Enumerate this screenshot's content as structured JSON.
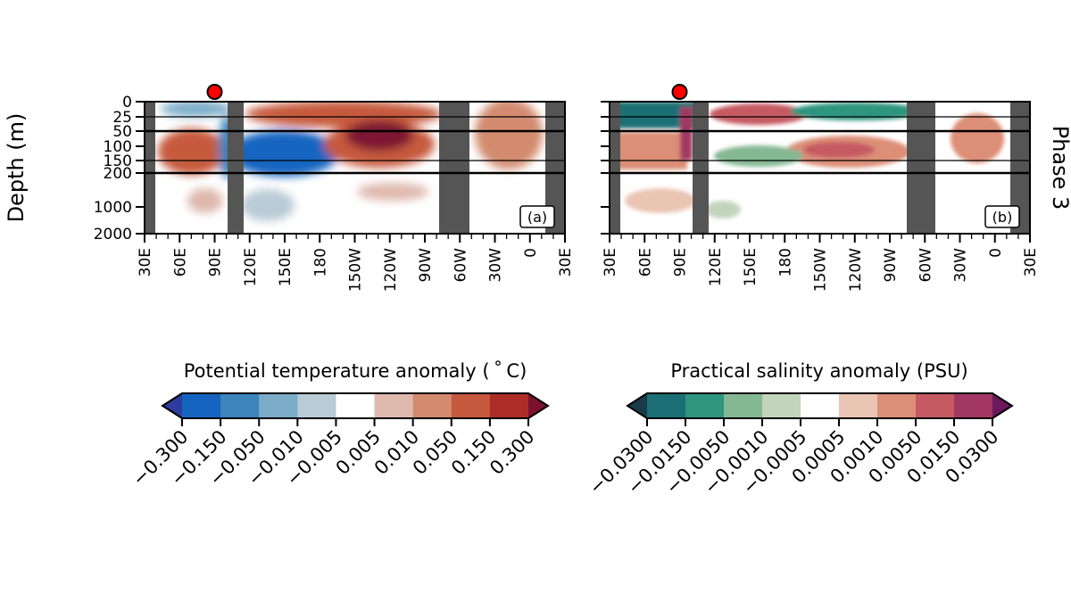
{
  "figure": {
    "ylabel": "Depth (m)",
    "row_label": "Phase 3",
    "y_ticks": [
      0,
      25,
      50,
      100,
      150,
      200,
      1000,
      2000
    ],
    "y_tick_labels": [
      "0",
      "25",
      "50",
      "100",
      "150",
      "200",
      "1000",
      "2000"
    ],
    "x_ticks": [
      "30E",
      "60E",
      "90E",
      "120E",
      "150E",
      "180",
      "150W",
      "120W",
      "90W",
      "60W",
      "30W",
      "0",
      "30E"
    ],
    "marker_longitude": "90E",
    "colors": {
      "land_mask": "#555555",
      "marker_fill": "#ff0000",
      "marker_edge": "#000000"
    }
  },
  "chart_data": [
    {
      "type": "heatmap",
      "panel_label": "(a)",
      "x": [
        "30E",
        "60E",
        "90E",
        "120E",
        "150E",
        "180",
        "150W",
        "120W",
        "90W",
        "60W",
        "30W",
        "0",
        "30E"
      ],
      "y": [
        0,
        25,
        50,
        100,
        150,
        200,
        1000,
        2000
      ],
      "xlabel": "",
      "ylabel": "Depth (m)",
      "colorbar": {
        "label": "Potential temperature anomaly ($^\\circ$C)",
        "label_text": "Potential temperature anomaly ( ˚ C)",
        "levels": [
          -0.3,
          -0.15,
          -0.05,
          -0.01,
          -0.005,
          0.005,
          0.01,
          0.05,
          0.15,
          0.3
        ],
        "tick_labels": [
          "−0.300",
          "−0.150",
          "−0.050",
          "−0.010",
          "−0.005",
          "0.005",
          "0.010",
          "0.050",
          "0.150",
          "0.300"
        ],
        "colors": [
          "#2d3c9e",
          "#1565c0",
          "#3d85bd",
          "#7aacc8",
          "#b9cbd5",
          "#ffffff",
          "#deb8ad",
          "#d38b6f",
          "#c65a3e",
          "#ad2d28",
          "#7d1230"
        ]
      }
    },
    {
      "type": "heatmap",
      "panel_label": "(b)",
      "x": [
        "30E",
        "60E",
        "90E",
        "120E",
        "150E",
        "180",
        "150W",
        "120W",
        "90W",
        "60W",
        "30W",
        "0",
        "30E"
      ],
      "y": [
        0,
        25,
        50,
        100,
        150,
        200,
        1000,
        2000
      ],
      "xlabel": "",
      "ylabel": "",
      "colorbar": {
        "label": "Practical salinity anomaly (PSU)",
        "levels": [
          -0.03,
          -0.015,
          -0.005,
          -0.001,
          -0.0005,
          0.0005,
          0.001,
          0.005,
          0.015,
          0.03
        ],
        "tick_labels": [
          "−0.0300",
          "−0.0150",
          "−0.0050",
          "−0.0010",
          "−0.0005",
          "0.0005",
          "0.0010",
          "0.0050",
          "0.0150",
          "0.0300"
        ],
        "colors": [
          "#1a3a4a",
          "#1b6f75",
          "#2f957e",
          "#84b893",
          "#c3d4bd",
          "#ffffff",
          "#ebc5b3",
          "#dc8e76",
          "#c65a63",
          "#a13864",
          "#6a1a5c"
        ]
      }
    }
  ]
}
